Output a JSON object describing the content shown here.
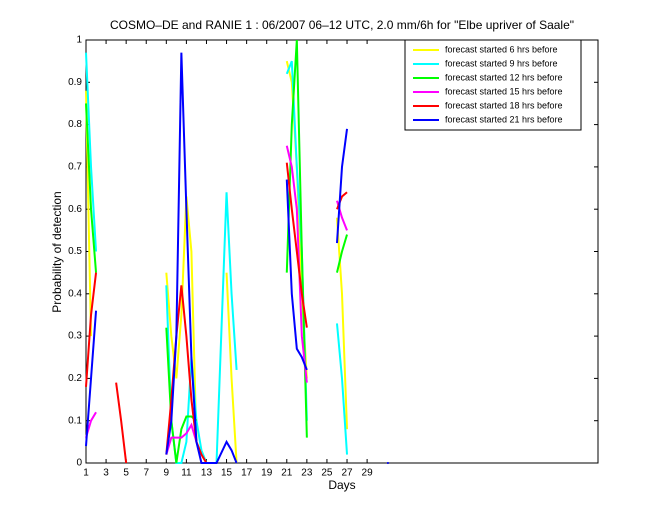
{
  "chart_data": {
    "type": "line",
    "title": "COSMO–DE and RANIE 1 : 06/2007 06–12 UTC, 2.0 mm/6h for \"Elbe upriver of Saale\"",
    "x_label": "Days",
    "y_label": "Probability of detection",
    "x": [
      1,
      1.5,
      2,
      3,
      4,
      4.5,
      5,
      7,
      9,
      9.5,
      10,
      10.5,
      11,
      11.5,
      12,
      12.5,
      13,
      14,
      15,
      15.5,
      16,
      19,
      21,
      21.5,
      22,
      22.5,
      23,
      25,
      26,
      26.5,
      27,
      30,
      31
    ],
    "series": [
      {
        "name": "forecast started 6 hrs before",
        "color": "#ffff00",
        "values": [
          0.88,
          0.3,
          null,
          null,
          null,
          null,
          null,
          null,
          0.45,
          0.3,
          0.2,
          0.35,
          0.63,
          0.5,
          0.05,
          0.02,
          0,
          null,
          0.45,
          0.2,
          0,
          null,
          0.95,
          0.9,
          0.7,
          0.4,
          0.2,
          null,
          0.58,
          0.4,
          0.08,
          null,
          null
        ]
      },
      {
        "name": "forecast started 9 hrs before",
        "color": "#00ffff",
        "values": [
          0.97,
          0.7,
          0.5,
          null,
          null,
          null,
          null,
          null,
          0.42,
          0.1,
          0,
          0,
          0.05,
          0.25,
          0.1,
          0.03,
          0,
          0,
          0.64,
          0.4,
          0.22,
          null,
          0.92,
          0.95,
          0.7,
          0.5,
          0.1,
          null,
          0.33,
          0.2,
          0.02,
          null,
          null
        ]
      },
      {
        "name": "forecast started 12 hrs before",
        "color": "#00ff00",
        "values": [
          0.85,
          0.6,
          0.45,
          null,
          null,
          null,
          null,
          null,
          0.32,
          0.1,
          0,
          0.08,
          0.11,
          0.11,
          0.1,
          null,
          null,
          null,
          null,
          null,
          null,
          null,
          0.45,
          0.8,
          1,
          0.5,
          0.06,
          null,
          0.45,
          0.5,
          0.54,
          null,
          null
        ]
      },
      {
        "name": "forecast started 15 hrs before",
        "color": "#ff00ff",
        "values": [
          0.06,
          0.1,
          0.12,
          null,
          null,
          null,
          null,
          null,
          0.02,
          0.06,
          0.06,
          0.06,
          0.07,
          0.09,
          0.05,
          null,
          0,
          null,
          null,
          null,
          null,
          null,
          0.75,
          0.7,
          0.6,
          0.3,
          0.19,
          null,
          0.62,
          0.58,
          0.55,
          null,
          null
        ]
      },
      {
        "name": "forecast started 18 hrs before",
        "color": "#ff0000",
        "values": [
          0.18,
          0.35,
          0.45,
          null,
          0.19,
          0.1,
          0,
          null,
          0.02,
          0.15,
          0.3,
          0.42,
          0.3,
          0.15,
          0.05,
          0.02,
          0,
          null,
          null,
          null,
          null,
          null,
          0.71,
          0.6,
          0.5,
          0.4,
          0.32,
          null,
          0.6,
          0.63,
          0.64,
          null,
          null
        ]
      },
      {
        "name": "forecast started 21 hrs before",
        "color": "#0000ff",
        "values": [
          0.04,
          0.2,
          0.36,
          null,
          null,
          null,
          null,
          null,
          0.02,
          0.1,
          0.3,
          0.97,
          0.6,
          0.25,
          0.05,
          0,
          0,
          0,
          0.05,
          0.03,
          0,
          null,
          0.67,
          0.4,
          0.27,
          0.25,
          0.22,
          null,
          0.52,
          0.7,
          0.79,
          null,
          0
        ]
      }
    ],
    "xlim": [
      1,
      52
    ],
    "xticks": [
      1,
      3,
      5,
      7,
      9,
      11,
      13,
      15,
      17,
      19,
      21,
      23,
      25,
      27,
      29
    ],
    "ylim": [
      0,
      1
    ],
    "yticks": [
      0,
      0.1,
      0.2,
      0.3,
      0.4,
      0.5,
      0.6,
      0.7,
      0.8,
      0.9,
      1
    ],
    "grid": false,
    "legend": "northeast"
  }
}
